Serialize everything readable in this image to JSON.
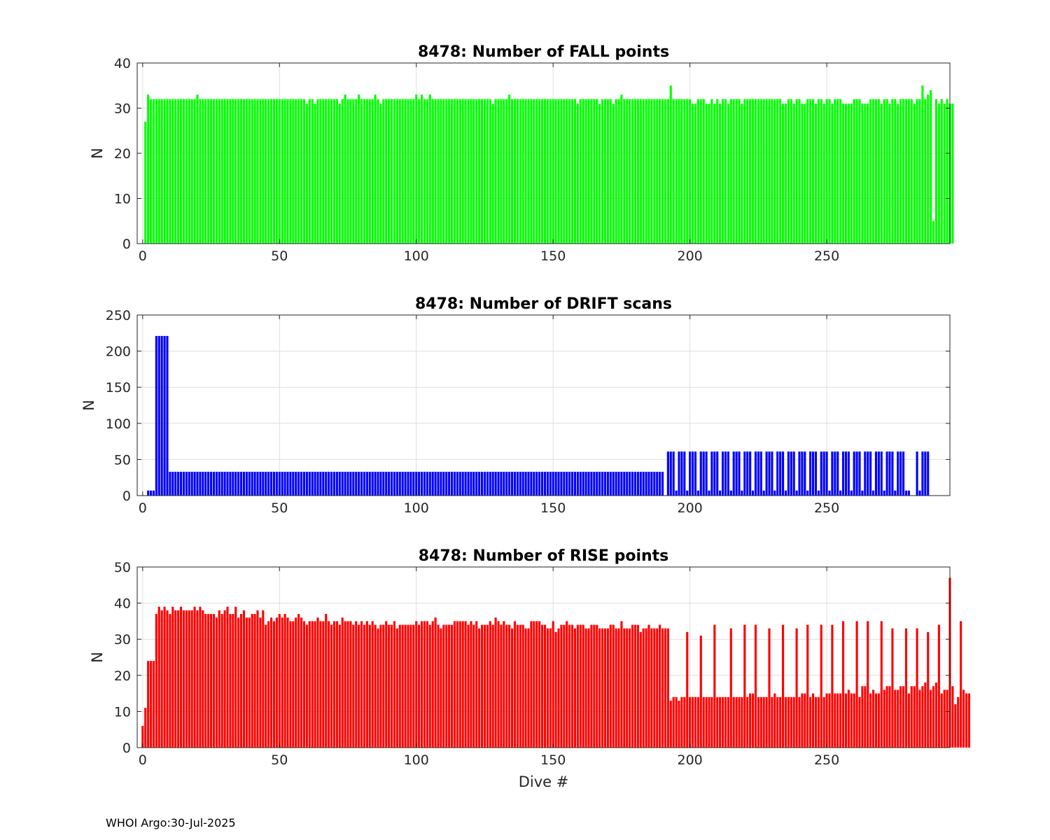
{
  "footer": "WHOI Argo:30-Jul-2025",
  "chart_data": [
    {
      "type": "bar",
      "title": "8478: Number of FALL points",
      "xlabel": "",
      "ylabel": "N",
      "xlim": [
        -2,
        295
      ],
      "ylim": [
        0,
        40
      ],
      "xticks": [
        0,
        50,
        100,
        150,
        200,
        250
      ],
      "yticks": [
        0,
        10,
        20,
        30,
        40
      ],
      "color": "#00ff00",
      "description": "Dive numbers 0-294; dive 0 has 0 fall points, otherwise ~32 fall points per dive",
      "values": [
        0,
        27,
        33,
        32,
        32,
        32,
        32,
        32,
        32,
        32,
        32,
        32,
        32,
        32,
        32,
        32,
        32,
        32,
        32,
        32,
        33,
        32,
        32,
        32,
        32,
        32,
        32,
        32,
        32,
        32,
        32,
        32,
        32,
        32,
        32,
        32,
        32,
        32,
        32,
        32,
        32,
        32,
        32,
        32,
        32,
        32,
        32,
        32,
        32,
        32,
        32,
        32,
        32,
        32,
        32,
        32,
        32,
        32,
        32,
        32,
        31,
        32,
        32,
        31,
        32,
        32,
        32,
        32,
        32,
        32,
        32,
        32,
        31,
        32,
        33,
        32,
        32,
        32,
        32,
        33,
        32,
        32,
        32,
        32,
        32,
        33,
        32,
        31,
        32,
        32,
        32,
        32,
        32,
        32,
        32,
        32,
        32,
        32,
        32,
        32,
        33,
        32,
        33,
        32,
        32,
        33,
        32,
        32,
        32,
        32,
        32,
        32,
        32,
        32,
        32,
        32,
        32,
        32,
        32,
        32,
        32,
        32,
        32,
        32,
        32,
        32,
        32,
        32,
        31,
        32,
        32,
        32,
        32,
        32,
        33,
        32,
        32,
        32,
        32,
        32,
        32,
        32,
        32,
        32,
        32,
        32,
        32,
        32,
        32,
        32,
        32,
        32,
        32,
        32,
        32,
        32,
        32,
        32,
        32,
        31,
        32,
        32,
        32,
        32,
        32,
        32,
        32,
        31,
        32,
        32,
        32,
        32,
        31,
        32,
        32,
        33,
        32,
        32,
        32,
        32,
        32,
        32,
        32,
        32,
        32,
        32,
        32,
        32,
        32,
        32,
        32,
        32,
        32,
        35,
        32,
        32,
        32,
        32,
        32,
        32,
        32,
        31,
        31,
        32,
        32,
        32,
        31,
        31,
        32,
        31,
        32,
        31,
        32,
        32,
        31,
        32,
        32,
        32,
        32,
        31,
        32,
        32,
        32,
        32,
        32,
        32,
        32,
        32,
        32,
        32,
        32,
        32,
        32,
        32,
        31,
        31,
        32,
        32,
        31,
        32,
        32,
        31,
        31,
        32,
        32,
        32,
        31,
        32,
        32,
        31,
        32,
        32,
        31,
        32,
        32,
        32,
        31,
        31,
        31,
        31,
        32,
        32,
        32,
        31,
        31,
        31,
        32,
        32,
        32,
        32,
        31,
        32,
        32,
        31,
        32,
        32,
        31,
        32,
        32,
        32,
        32,
        32,
        31,
        32,
        32,
        35,
        32,
        33,
        34,
        5,
        32,
        31,
        32,
        31,
        32,
        31,
        31
      ]
    },
    {
      "type": "bar",
      "title": "8478: Number of DRIFT scans",
      "xlabel": "",
      "ylabel": "N",
      "xlim": [
        -2,
        295
      ],
      "ylim": [
        0,
        250
      ],
      "xticks": [
        0,
        50,
        100,
        150,
        200,
        250
      ],
      "yticks": [
        0,
        50,
        100,
        150,
        200,
        250
      ],
      "color": "#0000ff",
      "description": "Dives 5-9 ~221 scans; dives 10-190 ~33 scans; dives 192+ alternate 61 / 7 scans",
      "values": [
        0,
        0,
        7,
        7,
        7,
        221,
        221,
        221,
        221,
        221,
        33,
        33,
        33,
        33,
        33,
        33,
        33,
        33,
        33,
        33,
        33,
        33,
        33,
        33,
        33,
        33,
        33,
        33,
        33,
        33,
        33,
        33,
        33,
        33,
        33,
        33,
        33,
        33,
        33,
        33,
        33,
        33,
        33,
        33,
        33,
        33,
        33,
        33,
        33,
        33,
        33,
        33,
        33,
        33,
        33,
        33,
        33,
        33,
        33,
        33,
        33,
        33,
        33,
        33,
        33,
        33,
        33,
        33,
        33,
        33,
        33,
        33,
        33,
        33,
        33,
        33,
        33,
        33,
        33,
        33,
        33,
        33,
        33,
        33,
        33,
        33,
        33,
        33,
        33,
        33,
        33,
        33,
        33,
        33,
        33,
        33,
        33,
        33,
        33,
        33,
        33,
        33,
        33,
        33,
        33,
        33,
        33,
        33,
        33,
        33,
        33,
        33,
        33,
        33,
        33,
        33,
        33,
        33,
        33,
        33,
        33,
        33,
        33,
        33,
        33,
        33,
        33,
        33,
        33,
        33,
        33,
        33,
        33,
        33,
        33,
        33,
        33,
        33,
        33,
        33,
        33,
        33,
        33,
        33,
        33,
        33,
        33,
        33,
        33,
        33,
        33,
        33,
        33,
        33,
        33,
        33,
        33,
        33,
        33,
        33,
        33,
        33,
        33,
        33,
        33,
        33,
        33,
        33,
        33,
        33,
        33,
        33,
        33,
        33,
        33,
        33,
        33,
        33,
        33,
        33,
        33,
        33,
        33,
        33,
        33,
        33,
        33,
        33,
        33,
        33,
        33,
        0,
        61,
        61,
        61,
        7,
        61,
        61,
        61,
        7,
        61,
        61,
        61,
        7,
        61,
        61,
        61,
        7,
        61,
        61,
        61,
        7,
        61,
        61,
        61,
        7,
        61,
        61,
        61,
        7,
        61,
        61,
        61,
        7,
        61,
        61,
        61,
        7,
        61,
        61,
        61,
        7,
        61,
        61,
        61,
        7,
        61,
        61,
        61,
        7,
        61,
        61,
        61,
        7,
        61,
        61,
        61,
        7,
        61,
        61,
        61,
        7,
        61,
        61,
        61,
        7,
        61,
        61,
        61,
        7,
        61,
        61,
        61,
        7,
        61,
        61,
        61,
        7,
        61,
        61,
        61,
        7,
        61,
        61,
        61,
        7,
        61,
        61,
        61,
        7,
        7,
        0,
        0,
        61,
        7,
        61,
        61,
        61
      ]
    },
    {
      "type": "bar",
      "title": "8478: Number of RISE points",
      "xlabel": "Dive #",
      "ylabel": "N",
      "xlim": [
        -2,
        295
      ],
      "ylim": [
        0,
        50
      ],
      "xticks": [
        0,
        50,
        100,
        150,
        200,
        250
      ],
      "yticks": [
        0,
        10,
        20,
        30,
        40,
        50
      ],
      "color": "#ff0000",
      "description": "Rise points per dive; ~38 early declining to ~33, then alternating ~14 / ~34 after dive 192, peak 47 near dive 288",
      "values": [
        6,
        11,
        24,
        24,
        24,
        37,
        39,
        38,
        39,
        38,
        37,
        39,
        38,
        38,
        39,
        38,
        38,
        38,
        38,
        39,
        38,
        39,
        38,
        37,
        37,
        37,
        37,
        36,
        38,
        37,
        38,
        39,
        37,
        37,
        39,
        36,
        37,
        38,
        36,
        36,
        37,
        37,
        38,
        36,
        38,
        34,
        35,
        36,
        35,
        36,
        37,
        36,
        37,
        36,
        35,
        35,
        36,
        37,
        36,
        35,
        34,
        35,
        35,
        35,
        36,
        35,
        35,
        37,
        35,
        34,
        35,
        35,
        34,
        36,
        35,
        35,
        35,
        34,
        35,
        34,
        35,
        34,
        35,
        34,
        35,
        34,
        33,
        34,
        34,
        35,
        34,
        34,
        35,
        33,
        34,
        34,
        34,
        34,
        34,
        34,
        35,
        34,
        35,
        35,
        35,
        34,
        35,
        36,
        34,
        33,
        34,
        34,
        34,
        34,
        35,
        35,
        35,
        35,
        35,
        34,
        35,
        34,
        35,
        33,
        34,
        34,
        34,
        35,
        34,
        36,
        35,
        34,
        35,
        34,
        34,
        33,
        35,
        34,
        34,
        34,
        33,
        33,
        35,
        35,
        35,
        35,
        34,
        34,
        33,
        33,
        35,
        32,
        33,
        34,
        34,
        35,
        34,
        34,
        33,
        34,
        34,
        34,
        33,
        33,
        34,
        34,
        34,
        33,
        33,
        33,
        33,
        34,
        34,
        33,
        33,
        35,
        33,
        33,
        33,
        34,
        34,
        34,
        32,
        33,
        33,
        34,
        33,
        33,
        33,
        34,
        33,
        33,
        33,
        13,
        14,
        14,
        13,
        14,
        14,
        32,
        14,
        14,
        14,
        14,
        31,
        14,
        14,
        14,
        14,
        34,
        14,
        14,
        14,
        14,
        14,
        33,
        14,
        14,
        14,
        14,
        34,
        14,
        15,
        15,
        34,
        14,
        14,
        14,
        14,
        33,
        14,
        15,
        14,
        14,
        34,
        14,
        14,
        14,
        14,
        33,
        14,
        15,
        15,
        34,
        14,
        15,
        14,
        14,
        34,
        14,
        15,
        15,
        34,
        15,
        15,
        15,
        35,
        15,
        16,
        15,
        15,
        35,
        14,
        17,
        17,
        35,
        15,
        16,
        15,
        15,
        35,
        16,
        17,
        17,
        33,
        16,
        16,
        17,
        17,
        33,
        15,
        17,
        17,
        33,
        16,
        17,
        18,
        32,
        16,
        17,
        18,
        34,
        15,
        16,
        16,
        47,
        17,
        12,
        14,
        35,
        16,
        15,
        15
      ]
    }
  ]
}
